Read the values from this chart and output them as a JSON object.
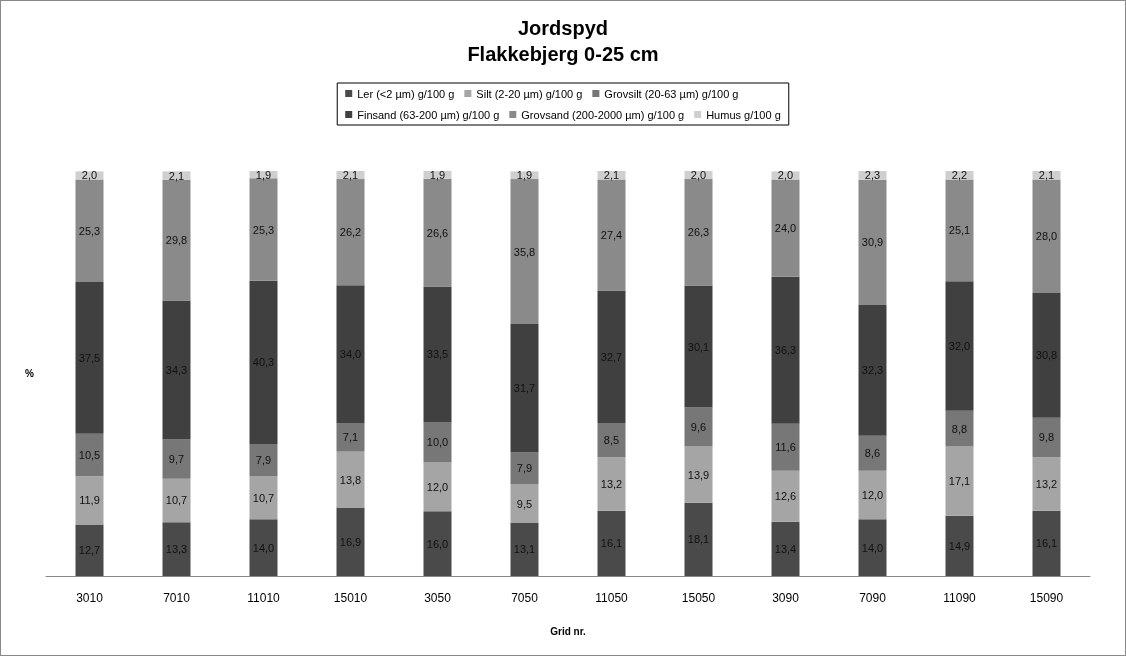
{
  "chart_data": {
    "type": "bar",
    "title": "Jordspyd",
    "subtitle": "Flakkebjerg 0-25 cm",
    "xlabel": "Grid nr.",
    "ylabel": "%",
    "categories": [
      "3010",
      "7010",
      "11010",
      "15010",
      "3050",
      "7050",
      "11050",
      "15050",
      "3090",
      "7090",
      "11090",
      "15090"
    ],
    "stacked": true,
    "ylim": [
      0,
      100
    ],
    "tick_labels": "x",
    "grid": false,
    "legend": "top",
    "series": [
      {
        "name": "Ler (<2 µm) g/100 g",
        "color": "#4a4a4a",
        "values": [
          12.7,
          13.3,
          14.0,
          16.9,
          16.0,
          13.1,
          16.1,
          18.1,
          13.4,
          14.0,
          14.9,
          16.1
        ],
        "value_labels": [
          "12,7",
          "13,3",
          "14,0",
          "16,9",
          "16,0",
          "13,1",
          "16,1",
          "18,1",
          "13,4",
          "14,0",
          "14,9",
          "16,1"
        ]
      },
      {
        "name": "Silt (2-20 µm) g/100 g",
        "color": "#a5a5a5",
        "values": [
          11.9,
          10.7,
          10.7,
          13.8,
          12.0,
          9.5,
          13.2,
          13.9,
          12.6,
          12.0,
          17.1,
          13.2
        ],
        "value_labels": [
          "11,9",
          "10,7",
          "10,7",
          "13,8",
          "12,0",
          "9,5",
          "13,2",
          "13,9",
          "12,6",
          "12,0",
          "17,1",
          "13,2"
        ]
      },
      {
        "name": "Grovsilt (20-63 µm) g/100 g",
        "color": "#777777",
        "values": [
          10.5,
          9.7,
          7.9,
          7.1,
          10.0,
          7.9,
          8.5,
          9.6,
          11.6,
          8.6,
          8.8,
          9.8
        ],
        "value_labels": [
          "10,5",
          "9,7",
          "7,9",
          "7,1",
          "10,0",
          "7,9",
          "8,5",
          "9,6",
          "11,6",
          "8,6",
          "8,8",
          "9,8"
        ]
      },
      {
        "name": "Finsand (63-200 µm) g/100 g",
        "color": "#404040",
        "values": [
          37.5,
          34.3,
          40.3,
          34.0,
          33.5,
          31.7,
          32.7,
          30.1,
          36.3,
          32.3,
          32.0,
          30.8
        ],
        "value_labels": [
          "37,5",
          "34,3",
          "40,3",
          "34,0",
          "33,5",
          "31,7",
          "32,7",
          "30,1",
          "36,3",
          "32,3",
          "32,0",
          "30,8"
        ]
      },
      {
        "name": "Grovsand (200-2000 µm) g/100 g",
        "color": "#8a8a8a",
        "values": [
          25.3,
          29.8,
          25.3,
          26.2,
          26.6,
          35.8,
          27.4,
          26.3,
          24.0,
          30.9,
          25.1,
          28.0
        ],
        "value_labels": [
          "25,3",
          "29,8",
          "25,3",
          "26,2",
          "26,6",
          "35,8",
          "27,4",
          "26,3",
          "24,0",
          "30,9",
          "25,1",
          "28,0"
        ]
      },
      {
        "name": "Humus g/100 g",
        "color": "#cfcfcf",
        "values": [
          2.0,
          2.1,
          1.9,
          2.1,
          1.9,
          1.9,
          2.1,
          2.0,
          2.0,
          2.3,
          2.2,
          2.1
        ],
        "value_labels": [
          "2,0",
          "2,1",
          "1,9",
          "2,1",
          "1,9",
          "1,9",
          "2,1",
          "2,0",
          "2,0",
          "2,3",
          "2,2",
          "2,1"
        ]
      }
    ]
  }
}
